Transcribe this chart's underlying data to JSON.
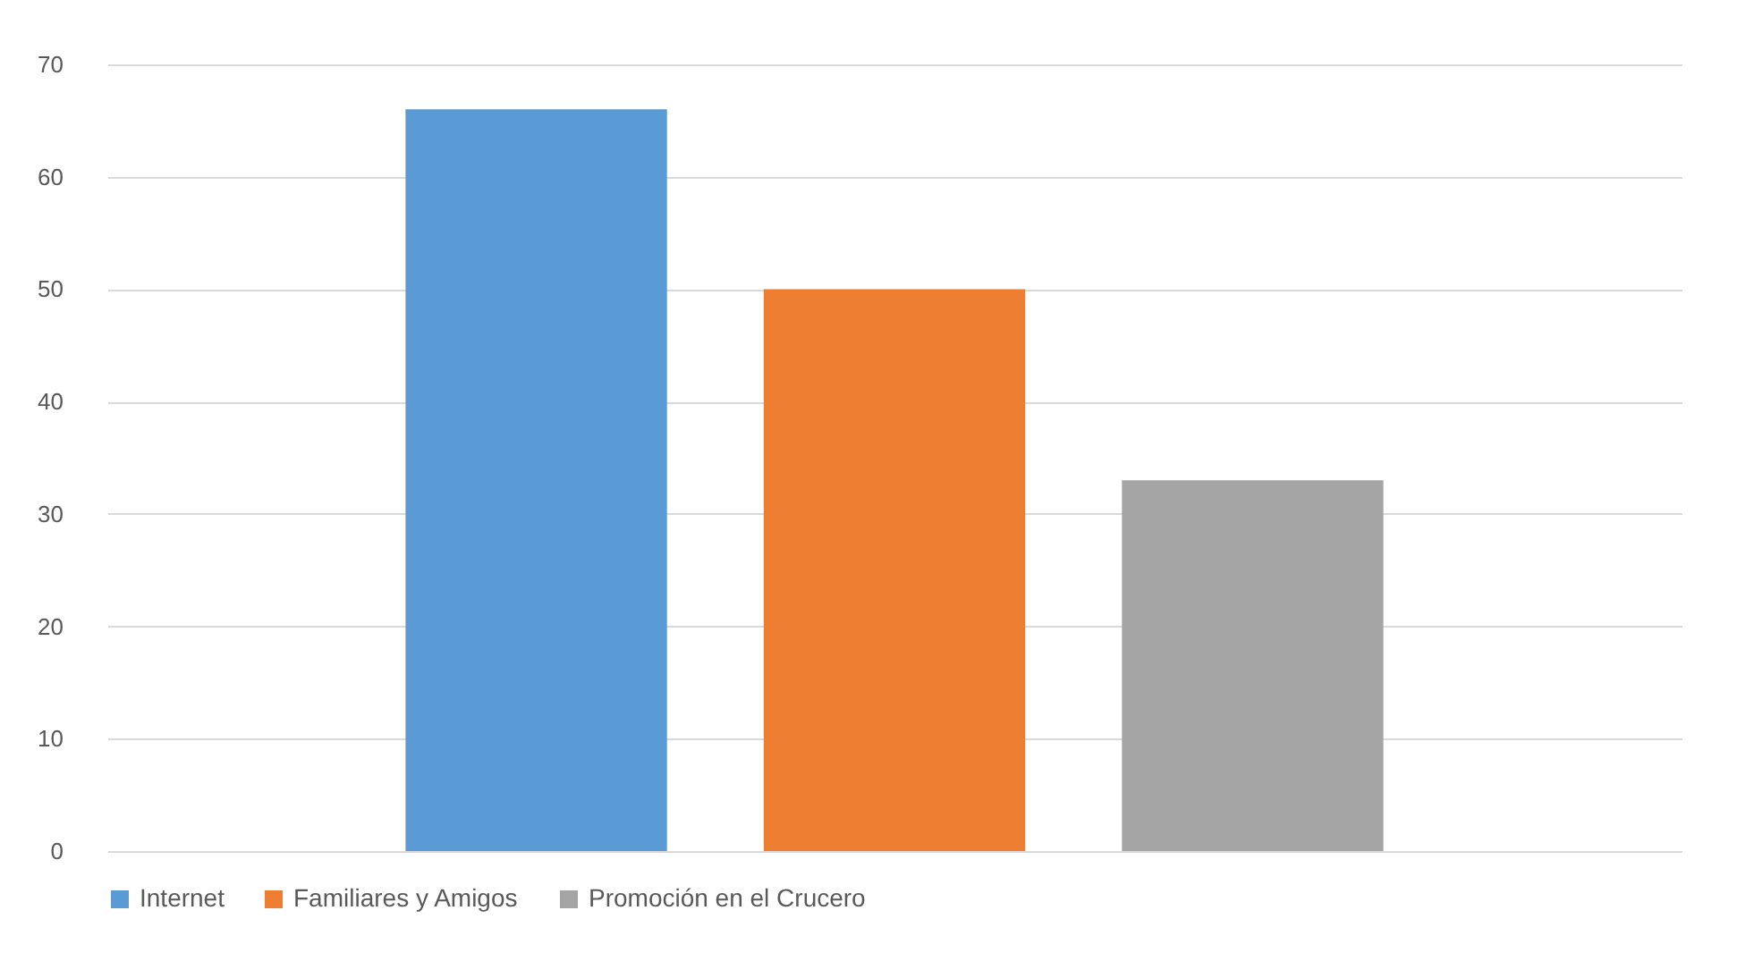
{
  "chart_data": {
    "type": "bar",
    "categories": [
      null
    ],
    "series": [
      {
        "name": "Internet",
        "color": "#5b9bd5",
        "values": [
          66
        ]
      },
      {
        "name": "Familiares y Amigos",
        "color": "#ed7d31",
        "values": [
          50
        ]
      },
      {
        "name": "Promoción en el Crucero",
        "color": "#a5a5a5",
        "values": [
          33
        ]
      }
    ],
    "ylim": [
      0,
      70
    ],
    "yticks": [
      0,
      10,
      20,
      30,
      40,
      50,
      60,
      70
    ],
    "grid": "y",
    "legend": "bottom"
  }
}
